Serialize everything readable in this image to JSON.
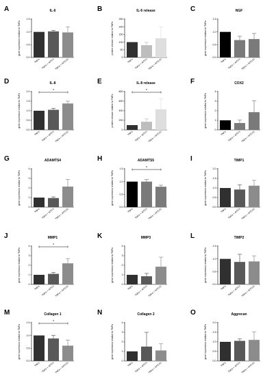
{
  "chart_data": [
    {
      "panel": "A",
      "type": "bar",
      "title": "IL-6",
      "ylabel": "gene expression relative to TNFα",
      "categories": [
        "TNFα",
        "TNFα + AITC3",
        "TNFα + AITC10"
      ],
      "values": [
        1.0,
        1.02,
        0.98
      ],
      "errors": [
        0,
        0.04,
        0.22
      ],
      "colors": [
        "#303030",
        "#595959",
        "#8c8c8c"
      ],
      "ylim": [
        0,
        1.5
      ],
      "yticks": [
        "0.0",
        "0.5",
        "1.0",
        "1.5"
      ],
      "sig": null
    },
    {
      "panel": "B",
      "type": "bar",
      "title": "IL-6 release",
      "ylabel": "protein release relative to TNFα",
      "categories": [
        "TNFα",
        "TNFα + AITC3",
        "TNFα + AITC10"
      ],
      "values": [
        100,
        80,
        125
      ],
      "errors": [
        0,
        18,
        75
      ],
      "colors": [
        "#303030",
        "#bdbdbd",
        "#dedede"
      ],
      "ylim": [
        0,
        250
      ],
      "yticks": [
        "0",
        "50",
        "100",
        "150",
        "200",
        "250"
      ],
      "sig": null
    },
    {
      "panel": "C",
      "type": "bar",
      "title": "NGF",
      "ylabel": "gene expression relative to TNFα",
      "categories": [
        "TNFα",
        "TNFα + AITC3",
        "TNFα + AITC10"
      ],
      "values": [
        1.0,
        0.68,
        0.72
      ],
      "errors": [
        0,
        0.15,
        0.22
      ],
      "colors": [
        "#000000",
        "#7a7a7a",
        "#7a7a7a"
      ],
      "ylim": [
        0,
        1.5
      ],
      "yticks": [
        "0.0",
        "0.5",
        "1.0",
        "1.5"
      ],
      "sig": null
    },
    {
      "panel": "D",
      "type": "bar",
      "title": "IL-8",
      "ylabel": "gene expression relative to TNFα",
      "categories": [
        "TNFα",
        "TNFα + AITC3",
        "TNFα + AITC10"
      ],
      "values": [
        1.0,
        1.05,
        1.38
      ],
      "errors": [
        0,
        0.08,
        0.12
      ],
      "colors": [
        "#303030",
        "#595959",
        "#8c8c8c"
      ],
      "ylim": [
        0,
        2.0
      ],
      "yticks": [
        "0.0",
        "0.5",
        "1.0",
        "1.5",
        "2.0"
      ],
      "sig": {
        "from": 0,
        "to": 2,
        "label": "*"
      }
    },
    {
      "panel": "E",
      "type": "bar",
      "title": "IL-8 release",
      "ylabel": "protein release relative to TNFα",
      "categories": [
        "TNFα",
        "TNFα + AITC3",
        "TNFα + AITC10"
      ],
      "values": [
        100,
        170,
        430
      ],
      "errors": [
        0,
        60,
        220
      ],
      "colors": [
        "#303030",
        "#bdbdbd",
        "#dedede"
      ],
      "ylim": [
        0,
        800
      ],
      "yticks": [
        "0",
        "200",
        "400",
        "600",
        "800"
      ],
      "sig": {
        "from": 0,
        "to": 2,
        "label": "*"
      }
    },
    {
      "panel": "F",
      "type": "bar",
      "title": "COX2",
      "ylabel": "gene expression relative to TNFα",
      "categories": [
        "TNFα",
        "TNFα + AITC3",
        "TNFα + AITC10"
      ],
      "values": [
        1.0,
        0.72,
        1.85
      ],
      "errors": [
        0,
        0.3,
        1.2
      ],
      "colors": [
        "#000000",
        "#7a7a7a",
        "#7a7a7a"
      ],
      "ylim": [
        0,
        4
      ],
      "yticks": [
        "0",
        "1",
        "2",
        "3",
        "4"
      ],
      "sig": null
    },
    {
      "panel": "G",
      "type": "bar",
      "title": "ADAMTS4",
      "ylabel": "gene expression relative to TNFα",
      "categories": [
        "TNFα",
        "TNFα + AITC3",
        "TNFα + AITC10"
      ],
      "values": [
        1.0,
        0.95,
        2.15
      ],
      "errors": [
        0,
        0.12,
        0.75
      ],
      "colors": [
        "#303030",
        "#595959",
        "#8c8c8c"
      ],
      "ylim": [
        0,
        4
      ],
      "yticks": [
        "0",
        "1",
        "2",
        "3",
        "4"
      ],
      "sig": null
    },
    {
      "panel": "H",
      "type": "bar",
      "title": "ADAMTS5",
      "ylabel": "gene expression relative to TNFα",
      "categories": [
        "TNFα",
        "TNFα + AITC3",
        "TNFα + AITC10"
      ],
      "values": [
        1.0,
        1.0,
        0.8
      ],
      "errors": [
        0,
        0.08,
        0.06
      ],
      "colors": [
        "#000000",
        "#7a7a7a",
        "#7a7a7a"
      ],
      "ylim": [
        0,
        1.5
      ],
      "yticks": [
        "0.0",
        "0.5",
        "1.0",
        "1.5"
      ],
      "sig": {
        "from": 0,
        "to": 2,
        "label": "*"
      }
    },
    {
      "panel": "I",
      "type": "bar",
      "title": "TIMP1",
      "ylabel": "gene expression relative to TNFα",
      "categories": [
        "TNFα",
        "TNFα + AITC3",
        "TNFα + AITC10"
      ],
      "values": [
        1.0,
        0.92,
        1.12
      ],
      "errors": [
        0,
        0.25,
        0.28
      ],
      "colors": [
        "#303030",
        "#595959",
        "#8c8c8c"
      ],
      "ylim": [
        0,
        2.0
      ],
      "yticks": [
        "0.0",
        "0.5",
        "1.0",
        "1.5",
        "2.0"
      ],
      "sig": null
    },
    {
      "panel": "J",
      "type": "bar",
      "title": "MMP1",
      "ylabel": "gene expression relative to TNFα",
      "categories": [
        "TNFα",
        "TNFα + AITC3",
        "TNFα + AITC10"
      ],
      "values": [
        1.0,
        1.1,
        2.2
      ],
      "errors": [
        0,
        0.15,
        0.5
      ],
      "colors": [
        "#303030",
        "#595959",
        "#8c8c8c"
      ],
      "ylim": [
        0,
        4
      ],
      "yticks": [
        "0",
        "1",
        "2",
        "3",
        "4"
      ],
      "sig": {
        "from": 0,
        "to": 2,
        "label": "*"
      }
    },
    {
      "panel": "K",
      "type": "bar",
      "title": "MMP3",
      "ylabel": "gene expression relative to TNFα",
      "categories": [
        "TNFα",
        "TNFα + AITC3",
        "TNFα + AITC10"
      ],
      "values": [
        1.0,
        0.85,
        1.85
      ],
      "errors": [
        0,
        0.3,
        1.0
      ],
      "colors": [
        "#303030",
        "#595959",
        "#8c8c8c"
      ],
      "ylim": [
        0,
        4
      ],
      "yticks": [
        "0",
        "1",
        "2",
        "3",
        "4"
      ],
      "sig": null
    },
    {
      "panel": "L",
      "type": "bar",
      "title": "TIMP2",
      "ylabel": "gene expression relative to TNFα",
      "categories": [
        "TNFα",
        "TNFα + AITC3",
        "TNFα + AITC10"
      ],
      "values": [
        1.0,
        0.88,
        0.9
      ],
      "errors": [
        0,
        0.3,
        0.22
      ],
      "colors": [
        "#303030",
        "#595959",
        "#8c8c8c"
      ],
      "ylim": [
        0,
        1.5
      ],
      "yticks": [
        "0.0",
        "0.5",
        "1.0",
        "1.5"
      ],
      "sig": null
    },
    {
      "panel": "M",
      "type": "bar",
      "title": "Collagen 1",
      "ylabel": "gene expression relative to TNFα",
      "categories": [
        "TNFα",
        "TNFα + AITC3",
        "TNFα + AITC10"
      ],
      "values": [
        1.0,
        0.88,
        0.6
      ],
      "errors": [
        0,
        0.12,
        0.22
      ],
      "colors": [
        "#303030",
        "#595959",
        "#8c8c8c"
      ],
      "ylim": [
        0,
        1.5
      ],
      "yticks": [
        "0.0",
        "0.5",
        "1.0",
        "1.5"
      ],
      "sig": {
        "from": 0,
        "to": 2,
        "label": "*"
      }
    },
    {
      "panel": "N",
      "type": "bar",
      "title": "Collagen 2",
      "ylabel": "gene expression relative to TNFα",
      "categories": [
        "TNFα",
        "TNFα + AITC3",
        "TNFα + AITC10"
      ],
      "values": [
        1.0,
        1.5,
        1.1
      ],
      "errors": [
        0,
        1.5,
        0.7
      ],
      "colors": [
        "#303030",
        "#595959",
        "#8c8c8c"
      ],
      "ylim": [
        0,
        4
      ],
      "yticks": [
        "0",
        "1",
        "2",
        "3",
        "4"
      ],
      "sig": null
    },
    {
      "panel": "O",
      "type": "bar",
      "title": "Aggrecan",
      "ylabel": "gene expression relative to TNFα",
      "categories": [
        "TNFα",
        "TNFα + AITC3",
        "TNFα + AITC10"
      ],
      "values": [
        1.0,
        1.05,
        1.1
      ],
      "errors": [
        0,
        0.1,
        0.42
      ],
      "colors": [
        "#303030",
        "#595959",
        "#8c8c8c"
      ],
      "ylim": [
        0,
        2.0
      ],
      "yticks": [
        "0.0",
        "0.5",
        "1.0",
        "1.5",
        "2.0"
      ],
      "sig": null
    }
  ]
}
